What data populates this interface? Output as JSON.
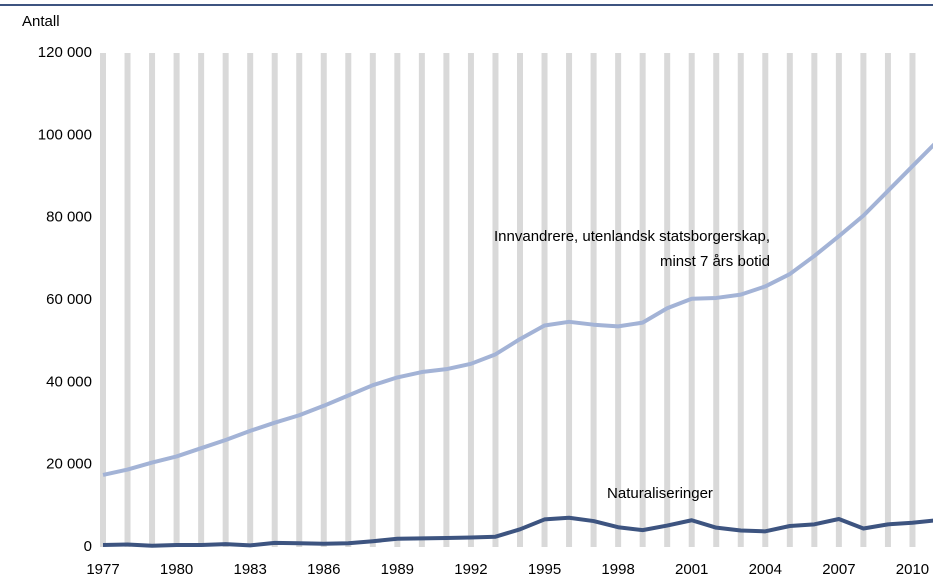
{
  "chart_data": {
    "type": "line",
    "y_axis_label": "Antall",
    "x": [
      1977,
      1978,
      1979,
      1980,
      1981,
      1982,
      1983,
      1984,
      1985,
      1986,
      1987,
      1988,
      1989,
      1990,
      1991,
      1992,
      1993,
      1994,
      1995,
      1996,
      1997,
      1998,
      1999,
      2000,
      2001,
      2002,
      2003,
      2004,
      2005,
      2006,
      2007,
      2008,
      2009,
      2010,
      2011
    ],
    "xlim": [
      1977,
      2011
    ],
    "xticks": [
      1977,
      1980,
      1983,
      1986,
      1989,
      1992,
      1995,
      1998,
      2001,
      2004,
      2007,
      2010
    ],
    "ylim": [
      0,
      120000
    ],
    "yticks": [
      0,
      {
        "value": 20000,
        "label": "20 000"
      },
      {
        "value": 40000,
        "label": "40 000"
      },
      {
        "value": 60000,
        "label": "60 000"
      },
      {
        "value": 80000,
        "label": "80 000"
      },
      {
        "value": 100000,
        "label": "100 000"
      },
      {
        "value": 120000,
        "label": "120 000"
      }
    ],
    "grid": true,
    "series": [
      {
        "name": "Innvandrere, utenlandsk statsborgerskap, minst 7 års botid",
        "color": "#a3b3d6",
        "values": [
          17500,
          18800,
          20500,
          22000,
          24000,
          26000,
          28200,
          30200,
          32000,
          34300,
          36800,
          39300,
          41200,
          42500,
          43200,
          44500,
          46800,
          50500,
          53800,
          54700,
          54000,
          53600,
          54500,
          58000,
          60300,
          60500,
          61300,
          63300,
          66300,
          70700,
          75500,
          80500,
          86500,
          92500,
          98500
        ]
      },
      {
        "name": "Naturaliseringer",
        "color": "#3d5480",
        "values": [
          500,
          600,
          300,
          500,
          500,
          700,
          400,
          1000,
          900,
          800,
          900,
          1400,
          2000,
          2100,
          2200,
          2300,
          2500,
          4300,
          6700,
          7100,
          6300,
          4800,
          4100,
          5200,
          6500,
          4700,
          4000,
          3800,
          5100,
          5500,
          6800,
          4500,
          5500,
          5900,
          6500
        ]
      }
    ]
  }
}
